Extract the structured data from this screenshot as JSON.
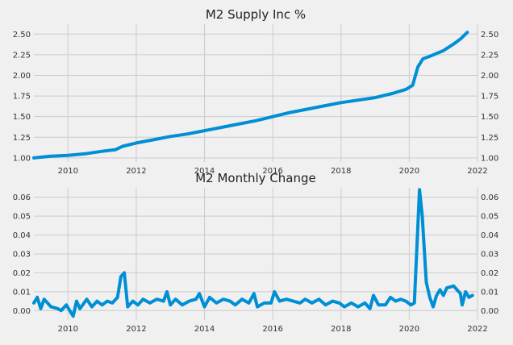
{
  "chart_data": [
    {
      "type": "line",
      "title": "M2 Supply Inc %",
      "xlabel": "",
      "ylabel": "",
      "xlim": [
        2009.0,
        2022.0
      ],
      "ylim": [
        0.95,
        2.62
      ],
      "x_ticks": [
        "2010",
        "2012",
        "2014",
        "2016",
        "2018",
        "2020",
        "2022"
      ],
      "y_ticks": [
        "1.00",
        "1.25",
        "1.50",
        "1.75",
        "2.00",
        "2.25",
        "2.50"
      ],
      "y_ticks_mirrored": true,
      "grid": true,
      "series": [
        {
          "color": "#008fd5",
          "points": [
            [
              2009.0,
              1.0
            ],
            [
              2009.5,
              1.02
            ],
            [
              2010.0,
              1.03
            ],
            [
              2010.5,
              1.05
            ],
            [
              2011.0,
              1.08
            ],
            [
              2011.4,
              1.1
            ],
            [
              2011.6,
              1.14
            ],
            [
              2012.0,
              1.18
            ],
            [
              2012.5,
              1.22
            ],
            [
              2013.0,
              1.26
            ],
            [
              2013.5,
              1.29
            ],
            [
              2014.0,
              1.33
            ],
            [
              2014.5,
              1.37
            ],
            [
              2015.0,
              1.41
            ],
            [
              2015.5,
              1.45
            ],
            [
              2016.0,
              1.5
            ],
            [
              2016.5,
              1.55
            ],
            [
              2017.0,
              1.59
            ],
            [
              2017.5,
              1.63
            ],
            [
              2018.0,
              1.67
            ],
            [
              2018.5,
              1.7
            ],
            [
              2019.0,
              1.73
            ],
            [
              2019.5,
              1.78
            ],
            [
              2019.9,
              1.83
            ],
            [
              2020.1,
              1.88
            ],
            [
              2020.25,
              2.1
            ],
            [
              2020.4,
              2.2
            ],
            [
              2020.6,
              2.23
            ],
            [
              2021.0,
              2.3
            ],
            [
              2021.3,
              2.38
            ],
            [
              2021.5,
              2.44
            ],
            [
              2021.7,
              2.52
            ]
          ]
        }
      ]
    },
    {
      "type": "line",
      "title": "M2 Monthly Change",
      "xlabel": "",
      "ylabel": "",
      "xlim": [
        2009.0,
        2022.0
      ],
      "ylim": [
        -0.005,
        0.065
      ],
      "x_ticks": [
        "2010",
        "2012",
        "2014",
        "2016",
        "2018",
        "2020",
        "2022"
      ],
      "y_ticks": [
        "0.00",
        "0.01",
        "0.02",
        "0.03",
        "0.04",
        "0.05",
        "0.06"
      ],
      "y_ticks_mirrored": true,
      "grid": true,
      "series": [
        {
          "color": "#008fd5",
          "points": [
            [
              2009.0,
              0.004
            ],
            [
              2009.1,
              0.007
            ],
            [
              2009.2,
              0.001
            ],
            [
              2009.3,
              0.006
            ],
            [
              2009.5,
              0.002
            ],
            [
              2009.7,
              0.001
            ],
            [
              2009.8,
              0.0
            ],
            [
              2009.95,
              0.003
            ],
            [
              2010.15,
              -0.003
            ],
            [
              2010.25,
              0.005
            ],
            [
              2010.35,
              0.001
            ],
            [
              2010.55,
              0.006
            ],
            [
              2010.7,
              0.002
            ],
            [
              2010.85,
              0.005
            ],
            [
              2011.0,
              0.003
            ],
            [
              2011.15,
              0.005
            ],
            [
              2011.3,
              0.004
            ],
            [
              2011.45,
              0.007
            ],
            [
              2011.55,
              0.018
            ],
            [
              2011.65,
              0.02
            ],
            [
              2011.75,
              0.002
            ],
            [
              2011.9,
              0.005
            ],
            [
              2012.05,
              0.003
            ],
            [
              2012.2,
              0.006
            ],
            [
              2012.4,
              0.004
            ],
            [
              2012.6,
              0.006
            ],
            [
              2012.8,
              0.005
            ],
            [
              2012.9,
              0.01
            ],
            [
              2013.0,
              0.003
            ],
            [
              2013.15,
              0.006
            ],
            [
              2013.35,
              0.003
            ],
            [
              2013.55,
              0.005
            ],
            [
              2013.75,
              0.006
            ],
            [
              2013.85,
              0.009
            ],
            [
              2014.0,
              0.002
            ],
            [
              2014.15,
              0.007
            ],
            [
              2014.35,
              0.004
            ],
            [
              2014.55,
              0.006
            ],
            [
              2014.75,
              0.005
            ],
            [
              2014.9,
              0.003
            ],
            [
              2015.1,
              0.006
            ],
            [
              2015.3,
              0.004
            ],
            [
              2015.45,
              0.009
            ],
            [
              2015.55,
              0.002
            ],
            [
              2015.75,
              0.004
            ],
            [
              2015.95,
              0.004
            ],
            [
              2016.05,
              0.01
            ],
            [
              2016.2,
              0.005
            ],
            [
              2016.4,
              0.006
            ],
            [
              2016.6,
              0.005
            ],
            [
              2016.8,
              0.004
            ],
            [
              2016.95,
              0.006
            ],
            [
              2017.15,
              0.004
            ],
            [
              2017.35,
              0.006
            ],
            [
              2017.55,
              0.003
            ],
            [
              2017.75,
              0.005
            ],
            [
              2017.95,
              0.004
            ],
            [
              2018.1,
              0.002
            ],
            [
              2018.3,
              0.004
            ],
            [
              2018.5,
              0.002
            ],
            [
              2018.7,
              0.004
            ],
            [
              2018.85,
              0.001
            ],
            [
              2018.95,
              0.008
            ],
            [
              2019.1,
              0.003
            ],
            [
              2019.3,
              0.003
            ],
            [
              2019.45,
              0.007
            ],
            [
              2019.6,
              0.005
            ],
            [
              2019.75,
              0.006
            ],
            [
              2019.9,
              0.005
            ],
            [
              2020.05,
              0.003
            ],
            [
              2020.15,
              0.004
            ],
            [
              2020.3,
              0.064
            ],
            [
              2020.38,
              0.05
            ],
            [
              2020.5,
              0.015
            ],
            [
              2020.6,
              0.007
            ],
            [
              2020.7,
              0.002
            ],
            [
              2020.8,
              0.008
            ],
            [
              2020.9,
              0.011
            ],
            [
              2021.0,
              0.008
            ],
            [
              2021.1,
              0.012
            ],
            [
              2021.3,
              0.013
            ],
            [
              2021.4,
              0.011
            ],
            [
              2021.5,
              0.009
            ],
            [
              2021.55,
              0.003
            ],
            [
              2021.65,
              0.01
            ],
            [
              2021.75,
              0.007
            ],
            [
              2021.85,
              0.008
            ]
          ]
        }
      ]
    }
  ]
}
